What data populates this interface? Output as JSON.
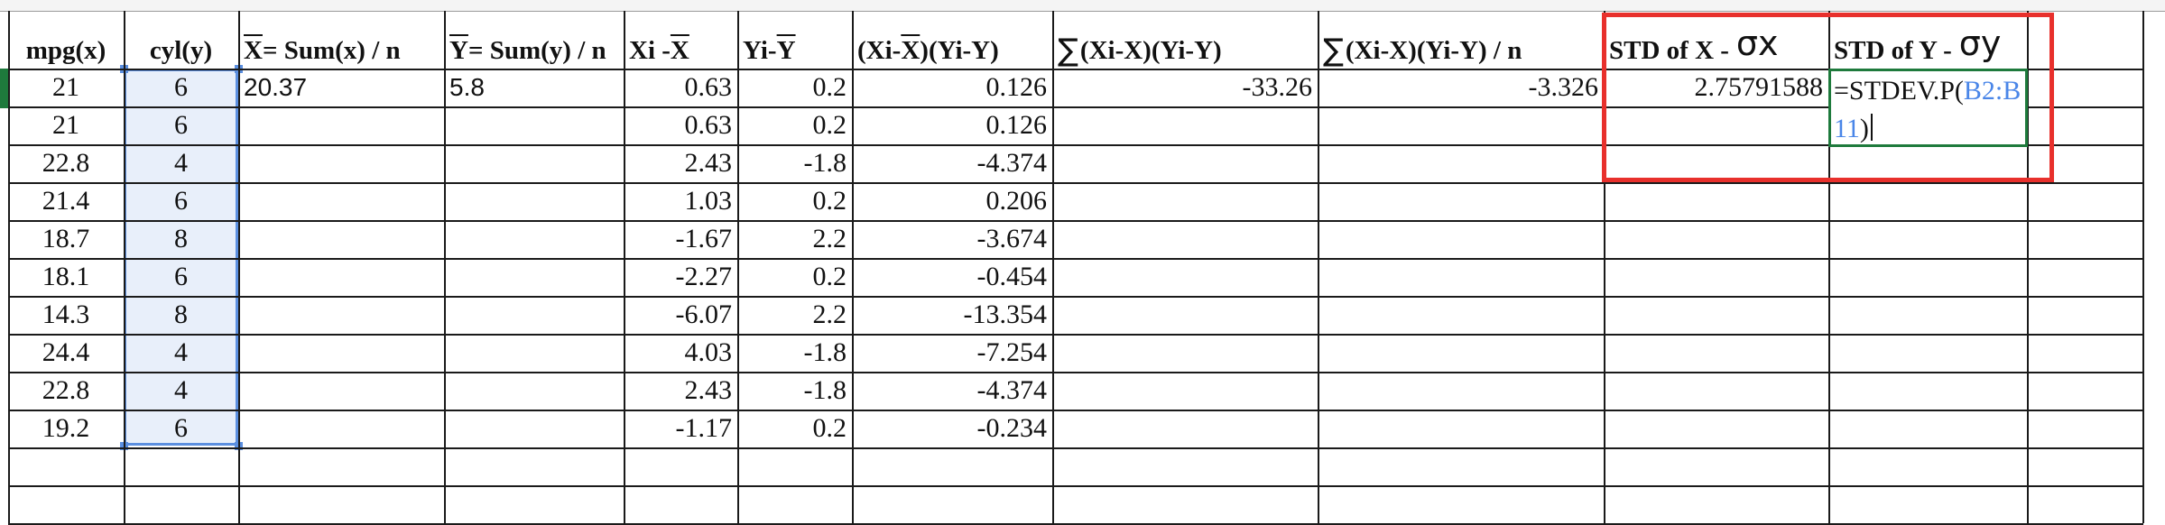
{
  "sheet": {
    "headers": [
      {
        "id": "mpg",
        "plain": "mpg(x)"
      },
      {
        "id": "cyl",
        "plain": "cyl(y)"
      },
      {
        "id": "xbar",
        "over": "X",
        "rest": " = Sum(x) / n"
      },
      {
        "id": "ybar",
        "over": "Y",
        "rest": " = Sum(y) / n"
      },
      {
        "id": "xi",
        "pre": "Xi - ",
        "over": "X"
      },
      {
        "id": "yi",
        "pre": "Yi-",
        "over": "Y"
      },
      {
        "id": "prod",
        "pre": "(Xi-",
        "over": "X",
        "rest": ")(Yi-Y)"
      },
      {
        "id": "sum",
        "sigma": "∑",
        "rest": "(Xi-X)(Yi-Y)"
      },
      {
        "id": "sumn",
        "sigma": "∑",
        "rest": "(Xi-X)(Yi-Y) / n"
      },
      {
        "id": "stdx",
        "plain": "STD of X - ",
        "hand": "σx"
      },
      {
        "id": "stdy",
        "plain": "STD of Y - ",
        "hand": "σy"
      }
    ],
    "rows": [
      {
        "mpg": "21",
        "cyl": "6",
        "xi": "0.63",
        "yi": "0.2",
        "prod": "0.126"
      },
      {
        "mpg": "21",
        "cyl": "6",
        "xi": "0.63",
        "yi": "0.2",
        "prod": "0.126"
      },
      {
        "mpg": "22.8",
        "cyl": "4",
        "xi": "2.43",
        "yi": "-1.8",
        "prod": "-4.374"
      },
      {
        "mpg": "21.4",
        "cyl": "6",
        "xi": "1.03",
        "yi": "0.2",
        "prod": "0.206"
      },
      {
        "mpg": "18.7",
        "cyl": "8",
        "xi": "-1.67",
        "yi": "2.2",
        "prod": "-3.674"
      },
      {
        "mpg": "18.1",
        "cyl": "6",
        "xi": "-2.27",
        "yi": "0.2",
        "prod": "-0.454"
      },
      {
        "mpg": "14.3",
        "cyl": "8",
        "xi": "-6.07",
        "yi": "2.2",
        "prod": "-13.354"
      },
      {
        "mpg": "24.4",
        "cyl": "4",
        "xi": "4.03",
        "yi": "-1.8",
        "prod": "-7.254"
      },
      {
        "mpg": "22.8",
        "cyl": "4",
        "xi": "2.43",
        "yi": "-1.8",
        "prod": "-4.374"
      },
      {
        "mpg": "19.2",
        "cyl": "6",
        "xi": "-1.17",
        "yi": "0.2",
        "prod": "-0.234"
      }
    ],
    "first_row_extra": {
      "xbar": "20.37",
      "ybar": "5.8",
      "sum": "-33.26",
      "sumn": "-3.326",
      "stdx": "2.75791588"
    },
    "editing_formula": {
      "prefix": "=STDEV.P(",
      "ref": "B2:B11",
      "suffix": ")"
    }
  },
  "colors": {
    "selection_border": "#5b8fe0",
    "selection_fill": "#e8effa",
    "active_cell_border": "#1e7a3c",
    "annotation_red": "#e8302c",
    "formula_ref": "#4a86e8"
  }
}
